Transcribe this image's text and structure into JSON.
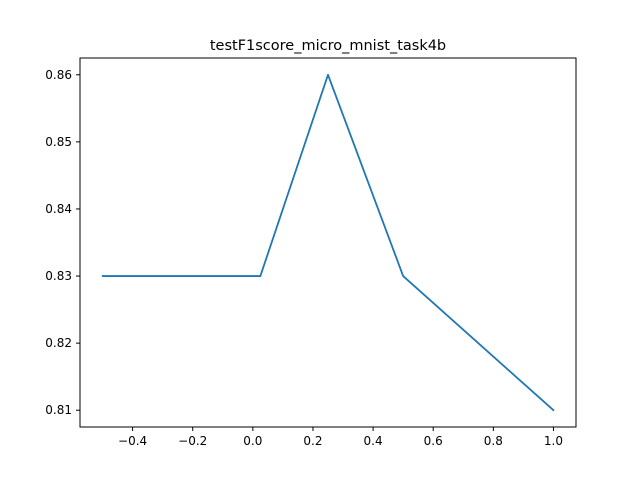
{
  "chart_data": {
    "type": "line",
    "title": "testF1score_micro_mnist_task4b",
    "xlabel": "",
    "ylabel": "",
    "xlim": [
      -0.575,
      1.075
    ],
    "ylim": [
      0.8075,
      0.8625
    ],
    "x_ticks": [
      -0.4,
      -0.2,
      0.0,
      0.2,
      0.4,
      0.6,
      0.8,
      1.0
    ],
    "x_tick_labels": [
      "−0.4",
      "−0.2",
      "0.0",
      "0.2",
      "0.4",
      "0.6",
      "0.8",
      "1.0"
    ],
    "y_ticks": [
      0.81,
      0.82,
      0.83,
      0.84,
      0.85,
      0.86
    ],
    "y_tick_labels": [
      "0.81",
      "0.82",
      "0.83",
      "0.84",
      "0.85",
      "0.86"
    ],
    "grid": false,
    "series": [
      {
        "color": "#1f77b4",
        "x": [
          -0.5,
          0.025,
          0.25,
          0.5,
          1.0
        ],
        "y": [
          0.83,
          0.83,
          0.86,
          0.83,
          0.81
        ]
      }
    ]
  }
}
